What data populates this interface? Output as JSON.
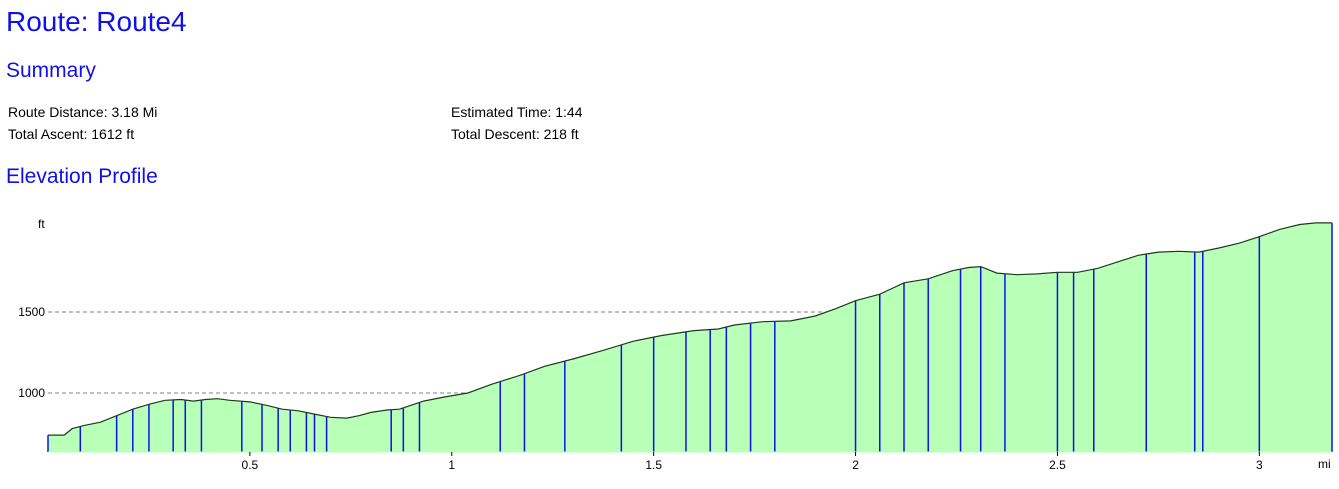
{
  "page": {
    "title": "Route: Route4"
  },
  "summary": {
    "heading": "Summary",
    "route_distance": "Route Distance: 3.18 Mi",
    "estimated_time": "Estimated Time: 1:44",
    "total_ascent": "Total Ascent: 1612 ft",
    "total_descent": "Total Descent: 218 ft"
  },
  "elevation": {
    "heading": "Elevation Profile"
  },
  "colors": {
    "heading": "#1010e8",
    "fill": "#b8ffb8",
    "outline": "#1e3a1e",
    "waypoint_line": "#1010e8",
    "grid": "#808080"
  },
  "chart_data": {
    "type": "area",
    "xlabel": "mi",
    "ylabel": "ft",
    "xlim": [
      0,
      3.18
    ],
    "ylim": [
      700,
      2260
    ],
    "xticks": [
      0.5,
      1,
      1.5,
      2,
      2.5,
      3
    ],
    "xtick_labels": [
      "0.5",
      "1",
      "1.5",
      "2",
      "2.5",
      "3"
    ],
    "yticks": [
      1000,
      1500
    ],
    "ytick_labels": [
      "1000",
      "1500"
    ],
    "grid": "horizontal dashed at y ticks",
    "series": [
      {
        "x": [
          0.0,
          0.04,
          0.06,
          0.09,
          0.13,
          0.17,
          0.21,
          0.25,
          0.29,
          0.33,
          0.36,
          0.39,
          0.42,
          0.45,
          0.5,
          0.54,
          0.58,
          0.62,
          0.66,
          0.7,
          0.74,
          0.77,
          0.8,
          0.84,
          0.87,
          0.9,
          0.93,
          0.98,
          1.04,
          1.1,
          1.17,
          1.23,
          1.3,
          1.37,
          1.45,
          1.52,
          1.6,
          1.66,
          1.7,
          1.77,
          1.84,
          1.9,
          1.95,
          2.0,
          2.06,
          2.12,
          2.18,
          2.24,
          2.28,
          2.31,
          2.35,
          2.4,
          2.45,
          2.5,
          2.55,
          2.6,
          2.65,
          2.7,
          2.75,
          2.8,
          2.85,
          2.9,
          2.95,
          3.0,
          3.05,
          3.1,
          3.14,
          3.18
        ],
        "y": [
          740,
          740,
          780,
          800,
          820,
          860,
          900,
          930,
          955,
          960,
          950,
          960,
          965,
          955,
          945,
          925,
          900,
          890,
          870,
          850,
          845,
          860,
          880,
          895,
          900,
          925,
          950,
          975,
          1000,
          1055,
          1110,
          1165,
          1210,
          1260,
          1320,
          1355,
          1385,
          1395,
          1420,
          1440,
          1445,
          1475,
          1520,
          1570,
          1610,
          1680,
          1705,
          1755,
          1775,
          1780,
          1740,
          1730,
          1735,
          1745,
          1745,
          1770,
          1810,
          1850,
          1870,
          1875,
          1870,
          1895,
          1925,
          1965,
          2010,
          2040,
          2050,
          2050
        ]
      }
    ],
    "waypoints_x": [
      0.08,
      0.17,
      0.21,
      0.25,
      0.31,
      0.34,
      0.38,
      0.48,
      0.53,
      0.57,
      0.6,
      0.64,
      0.66,
      0.69,
      0.85,
      0.88,
      0.92,
      1.12,
      1.18,
      1.28,
      1.42,
      1.5,
      1.58,
      1.64,
      1.68,
      1.74,
      1.8,
      2.0,
      2.06,
      2.12,
      2.18,
      2.26,
      2.31,
      2.37,
      2.5,
      2.54,
      2.59,
      2.72,
      2.84,
      2.86,
      3.0
    ]
  }
}
